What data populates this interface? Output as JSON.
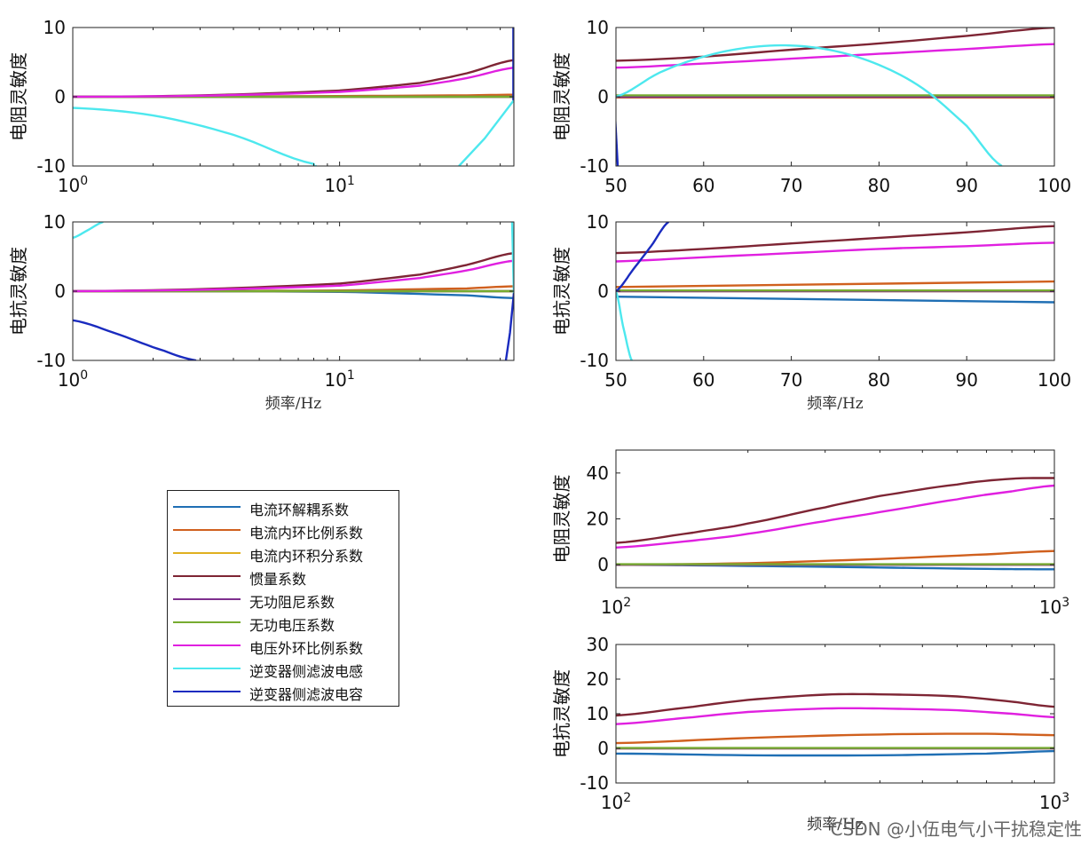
{
  "legend": [
    {
      "name": "电流环解耦系数",
      "color": "#1f6fb4"
    },
    {
      "name": "电流内环比例系数",
      "color": "#d0601e"
    },
    {
      "name": "电流内环积分系数",
      "color": "#e0b020"
    },
    {
      "name": "惯量系数",
      "color": "#7e2534"
    },
    {
      "name": "无功阻尼系数",
      "color": "#7e2f8e"
    },
    {
      "name": "无功电压系数",
      "color": "#77ac30"
    },
    {
      "name": "电压外环比例系数",
      "color": "#e020e0"
    },
    {
      "name": "逆变器侧滤波电感",
      "color": "#4de8ee"
    },
    {
      "name": "逆变器侧滤波电容",
      "color": "#1a2bbf"
    }
  ],
  "watermark": "CSDN @小伍电气小干扰稳定性",
  "chart_data": [
    {
      "type": "line",
      "panel": "top-left",
      "xscale": "log",
      "xlim": [
        1,
        45
      ],
      "ylim": [
        -10,
        10
      ],
      "yticks": [
        -10,
        0,
        10
      ],
      "xticks": [
        1,
        10
      ],
      "xticklabels": [
        "10^0",
        "10^1"
      ],
      "ylabel": "电阻灵敏度",
      "xlabel": "",
      "series": [
        {
          "color": "#1f6fb4",
          "x": [
            1,
            10,
            30,
            45
          ],
          "y": [
            0,
            0,
            0,
            0
          ]
        },
        {
          "color": "#d0601e",
          "x": [
            1,
            10,
            30,
            45
          ],
          "y": [
            0,
            0.1,
            0.2,
            0.3
          ]
        },
        {
          "color": "#e0b020",
          "x": [
            1,
            10,
            30,
            45
          ],
          "y": [
            0,
            0,
            0,
            0
          ]
        },
        {
          "color": "#7e2534",
          "x": [
            1,
            3,
            10,
            20,
            30,
            45
          ],
          "y": [
            0,
            0.2,
            0.9,
            2.0,
            3.4,
            5.3
          ]
        },
        {
          "color": "#7e2f8e",
          "x": [
            1,
            10,
            30,
            45
          ],
          "y": [
            0,
            0,
            0,
            0
          ]
        },
        {
          "color": "#77ac30",
          "x": [
            1,
            10,
            30,
            45
          ],
          "y": [
            0,
            0,
            0,
            0
          ]
        },
        {
          "color": "#e020e0",
          "x": [
            1,
            3,
            10,
            20,
            30,
            45
          ],
          "y": [
            0,
            0.15,
            0.7,
            1.6,
            2.7,
            4.2
          ]
        },
        {
          "color": "#4de8ee",
          "x": [
            1,
            2,
            4,
            8,
            8.2
          ],
          "y": [
            -1.6,
            -2.7,
            -5.5,
            -9.7,
            -10
          ],
          "x2": [
            28,
            35,
            45
          ],
          "y2": [
            -10,
            -6,
            -0.5
          ]
        },
        {
          "color": "#1a2bbf",
          "x": [
            44.8,
            44.8
          ],
          "y": [
            -0.5,
            10
          ]
        }
      ]
    },
    {
      "type": "line",
      "panel": "top-right",
      "xscale": "linear",
      "xlim": [
        50,
        100
      ],
      "ylim": [
        -10,
        10
      ],
      "yticks": [
        -10,
        0,
        10
      ],
      "xticks": [
        50,
        60,
        70,
        80,
        90,
        100
      ],
      "ylabel": "电阻灵敏度",
      "xlabel": "",
      "series": [
        {
          "color": "#1f6fb4",
          "x": [
            50,
            100
          ],
          "y": [
            0,
            0
          ]
        },
        {
          "color": "#d0601e",
          "x": [
            50,
            100
          ],
          "y": [
            -0.1,
            -0.1
          ]
        },
        {
          "color": "#e0b020",
          "x": [
            50,
            100
          ],
          "y": [
            0,
            0
          ]
        },
        {
          "color": "#7e2534",
          "x": [
            50,
            60,
            70,
            80,
            90,
            100
          ],
          "y": [
            5.2,
            5.8,
            6.8,
            7.7,
            8.8,
            10
          ]
        },
        {
          "color": "#7e2f8e",
          "x": [
            50,
            100
          ],
          "y": [
            0,
            0
          ]
        },
        {
          "color": "#77ac30",
          "x": [
            50,
            100
          ],
          "y": [
            0.2,
            0.2
          ]
        },
        {
          "color": "#e020e0",
          "x": [
            50,
            60,
            70,
            80,
            90,
            100
          ],
          "y": [
            4.2,
            4.8,
            5.5,
            6.2,
            6.9,
            7.6
          ]
        },
        {
          "color": "#4de8ee",
          "x": [
            50,
            55,
            60,
            65,
            70,
            75,
            80,
            85,
            90,
            94
          ],
          "y": [
            0,
            3.5,
            5.8,
            7.1,
            7.4,
            6.6,
            4.6,
            1.2,
            -4.2,
            -10
          ]
        },
        {
          "color": "#1a2bbf",
          "x": [
            49.8,
            50.2
          ],
          "y": [
            -0.3,
            -10
          ]
        }
      ]
    },
    {
      "type": "line",
      "panel": "middle-left",
      "xscale": "log",
      "xlim": [
        1,
        45
      ],
      "ylim": [
        -10,
        10
      ],
      "yticks": [
        -10,
        0,
        10
      ],
      "xticks": [
        1,
        10
      ],
      "xticklabels": [
        "10^0",
        "10^1"
      ],
      "ylabel": "电抗灵敏度",
      "xlabel": "频率/Hz",
      "series": [
        {
          "color": "#1f6fb4",
          "x": [
            1,
            10,
            30,
            45
          ],
          "y": [
            0,
            -0.1,
            -0.6,
            -1.0
          ]
        },
        {
          "color": "#d0601e",
          "x": [
            1,
            10,
            30,
            45
          ],
          "y": [
            0,
            0.1,
            0.4,
            0.7
          ]
        },
        {
          "color": "#e0b020",
          "x": [
            1,
            10,
            30,
            45
          ],
          "y": [
            0,
            0,
            0,
            0
          ]
        },
        {
          "color": "#7e2534",
          "x": [
            1,
            3,
            10,
            20,
            30,
            45
          ],
          "y": [
            0,
            0.3,
            1.1,
            2.4,
            3.8,
            5.5
          ]
        },
        {
          "color": "#7e2f8e",
          "x": [
            1,
            10,
            30,
            45
          ],
          "y": [
            0,
            0,
            0,
            0
          ]
        },
        {
          "color": "#77ac30",
          "x": [
            1,
            10,
            30,
            45
          ],
          "y": [
            0,
            0,
            0,
            0
          ]
        },
        {
          "color": "#e020e0",
          "x": [
            1,
            3,
            10,
            20,
            30,
            45
          ],
          "y": [
            0,
            0.2,
            0.8,
            1.9,
            3.0,
            4.4
          ]
        },
        {
          "color": "#4de8ee",
          "x": [
            1,
            1.15,
            1.3
          ],
          "y": [
            7.7,
            8.9,
            10
          ],
          "x2": [
            44.3,
            45
          ],
          "y2": [
            10,
            -0.5
          ]
        },
        {
          "color": "#1a2bbf",
          "x": [
            1,
            1.5,
            2.2,
            2.9
          ],
          "y": [
            -4.2,
            -6.3,
            -8.6,
            -10
          ],
          "x2": [
            42,
            43.5,
            45
          ],
          "y2": [
            -10,
            -6,
            -0.3
          ]
        }
      ]
    },
    {
      "type": "line",
      "panel": "middle-right",
      "xscale": "linear",
      "xlim": [
        50,
        100
      ],
      "ylim": [
        -10,
        10
      ],
      "yticks": [
        -10,
        0,
        10
      ],
      "xticks": [
        50,
        60,
        70,
        80,
        90,
        100
      ],
      "ylabel": "电抗灵敏度",
      "xlabel": "频率/Hz",
      "series": [
        {
          "color": "#1f6fb4",
          "x": [
            50,
            100
          ],
          "y": [
            -0.8,
            -1.6
          ]
        },
        {
          "color": "#d0601e",
          "x": [
            50,
            100
          ],
          "y": [
            0.6,
            1.4
          ]
        },
        {
          "color": "#e0b020",
          "x": [
            50,
            100
          ],
          "y": [
            0,
            0
          ]
        },
        {
          "color": "#7e2534",
          "x": [
            50,
            60,
            70,
            80,
            90,
            100
          ],
          "y": [
            5.5,
            6.1,
            6.9,
            7.7,
            8.5,
            9.4
          ]
        },
        {
          "color": "#7e2f8e",
          "x": [
            50,
            100
          ],
          "y": [
            0,
            0
          ]
        },
        {
          "color": "#77ac30",
          "x": [
            50,
            100
          ],
          "y": [
            0.1,
            0.1
          ]
        },
        {
          "color": "#e020e0",
          "x": [
            50,
            60,
            70,
            80,
            90,
            100
          ],
          "y": [
            4.3,
            4.9,
            5.5,
            6.1,
            6.5,
            7.0
          ]
        },
        {
          "color": "#4de8ee",
          "x": [
            50,
            50.8,
            51.8
          ],
          "y": [
            0,
            -5,
            -10
          ]
        },
        {
          "color": "#1a2bbf",
          "x": [
            50,
            52,
            54,
            56
          ],
          "y": [
            0,
            3.2,
            6.5,
            10
          ]
        }
      ]
    },
    {
      "type": "line",
      "panel": "lower-right-1",
      "xscale": "log",
      "xlim": [
        100,
        1000
      ],
      "ylim": [
        -10,
        50
      ],
      "yticks": [
        0,
        20,
        40
      ],
      "xticks": [
        100,
        1000
      ],
      "xticklabels": [
        "10^2",
        "10^3"
      ],
      "ylabel": "电阻灵敏度",
      "xlabel": "",
      "series": [
        {
          "color": "#1f6fb4",
          "x": [
            100,
            200,
            400,
            700,
            1000
          ],
          "y": [
            0,
            -0.5,
            -1.2,
            -1.8,
            -2.0
          ]
        },
        {
          "color": "#d0601e",
          "x": [
            100,
            200,
            400,
            700,
            1000
          ],
          "y": [
            0,
            0.7,
            2.5,
            4.5,
            6.0
          ]
        },
        {
          "color": "#e0b020",
          "x": [
            100,
            1000
          ],
          "y": [
            0,
            0
          ]
        },
        {
          "color": "#7e2534",
          "x": [
            100,
            150,
            200,
            300,
            400,
            600,
            800,
            1000
          ],
          "y": [
            9.5,
            14,
            18,
            25,
            30,
            35,
            37.5,
            37.8
          ]
        },
        {
          "color": "#7e2f8e",
          "x": [
            100,
            1000
          ],
          "y": [
            0,
            0
          ]
        },
        {
          "color": "#77ac30",
          "x": [
            100,
            1000
          ],
          "y": [
            0.2,
            0.2
          ]
        },
        {
          "color": "#e020e0",
          "x": [
            100,
            150,
            200,
            300,
            400,
            600,
            800,
            1000
          ],
          "y": [
            7.5,
            10.5,
            13.5,
            19,
            23,
            28.5,
            32,
            34.5
          ]
        }
      ]
    },
    {
      "type": "line",
      "panel": "lower-right-2",
      "xscale": "log",
      "xlim": [
        100,
        1000
      ],
      "ylim": [
        -10,
        30
      ],
      "yticks": [
        -10,
        0,
        10,
        20,
        30
      ],
      "xticks": [
        100,
        1000
      ],
      "xticklabels": [
        "10^2",
        "10^3"
      ],
      "ylabel": "电抗灵敏度",
      "xlabel": "频率/Hz",
      "series": [
        {
          "color": "#1f6fb4",
          "x": [
            100,
            200,
            400,
            700,
            1000
          ],
          "y": [
            -1.5,
            -2.0,
            -2.0,
            -1.5,
            -0.8
          ]
        },
        {
          "color": "#d0601e",
          "x": [
            100,
            200,
            400,
            700,
            1000
          ],
          "y": [
            1.5,
            3.0,
            4.0,
            4.2,
            3.8
          ]
        },
        {
          "color": "#e0b020",
          "x": [
            100,
            1000
          ],
          "y": [
            0,
            0
          ]
        },
        {
          "color": "#7e2534",
          "x": [
            100,
            150,
            200,
            300,
            400,
            600,
            800,
            1000
          ],
          "y": [
            9.5,
            12,
            14,
            15.5,
            15.6,
            15,
            13.5,
            12
          ]
        },
        {
          "color": "#7e2f8e",
          "x": [
            100,
            1000
          ],
          "y": [
            0,
            0
          ]
        },
        {
          "color": "#77ac30",
          "x": [
            100,
            1000
          ],
          "y": [
            0.1,
            0.1
          ]
        },
        {
          "color": "#e020e0",
          "x": [
            100,
            150,
            200,
            300,
            400,
            600,
            800,
            1000
          ],
          "y": [
            7,
            9,
            10.5,
            11.5,
            11.5,
            11,
            10,
            9
          ]
        }
      ]
    }
  ]
}
